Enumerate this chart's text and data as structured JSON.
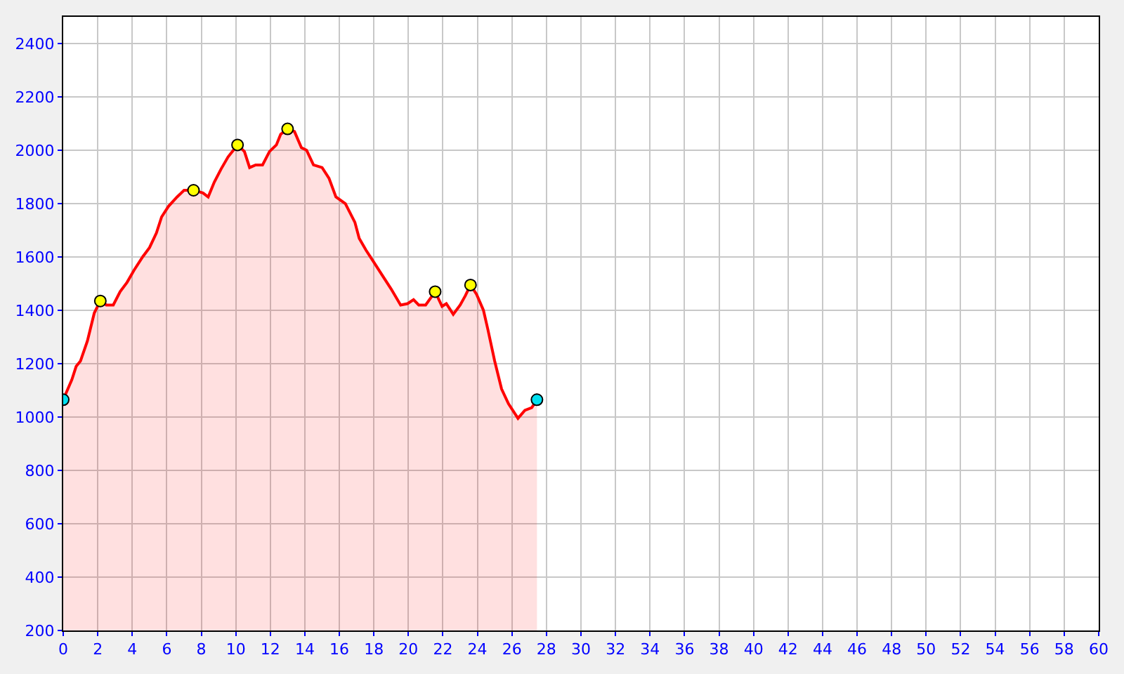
{
  "chart_data": {
    "type": "area",
    "xlim": [
      0,
      60
    ],
    "xticks": [
      0,
      2,
      4,
      6,
      8,
      10,
      12,
      14,
      16,
      18,
      20,
      22,
      24,
      26,
      28,
      30,
      32,
      34,
      36,
      38,
      40,
      42,
      44,
      46,
      48,
      50,
      52,
      54,
      56,
      58,
      60
    ],
    "ylim": [
      200,
      2500
    ],
    "yticks": [
      200,
      400,
      600,
      800,
      1000,
      1200,
      1400,
      1600,
      1800,
      2000,
      2200,
      2400
    ],
    "grid": true,
    "series": [
      {
        "color": "#ff0000",
        "x": [
          0,
          0.5,
          0.75,
          1.0,
          1.4,
          1.8,
          2.15,
          2.5,
          2.9,
          3.3,
          3.7,
          4.1,
          4.6,
          5.0,
          5.4,
          5.7,
          6.1,
          6.6,
          7.0,
          7.55,
          8.1,
          8.4,
          8.75,
          9.15,
          9.55,
          10.1,
          10.5,
          10.8,
          11.15,
          11.55,
          11.95,
          12.35,
          12.6,
          13.0,
          13.4,
          13.8,
          14.1,
          14.5,
          15.0,
          15.4,
          15.8,
          16.35,
          16.9,
          17.15,
          17.55,
          17.95,
          18.5,
          19.0,
          19.55,
          19.95,
          20.3,
          20.6,
          21.0,
          21.55,
          21.95,
          22.2,
          22.6,
          23.0,
          23.3,
          23.6,
          23.95,
          24.35,
          24.6,
          25.0,
          25.4,
          25.8,
          26.35,
          26.75,
          27.15,
          27.45
        ],
        "values": [
          1065,
          1140,
          1190,
          1210,
          1285,
          1390,
          1435,
          1420,
          1420,
          1470,
          1505,
          1550,
          1600,
          1635,
          1690,
          1750,
          1790,
          1825,
          1850,
          1850,
          1840,
          1825,
          1880,
          1930,
          1975,
          2020,
          1995,
          1935,
          1945,
          1945,
          1995,
          2020,
          2060,
          2080,
          2070,
          2010,
          2000,
          1945,
          1935,
          1895,
          1825,
          1800,
          1730,
          1670,
          1625,
          1585,
          1530,
          1480,
          1420,
          1425,
          1440,
          1420,
          1420,
          1470,
          1415,
          1425,
          1385,
          1420,
          1455,
          1495,
          1460,
          1400,
          1330,
          1210,
          1105,
          1050,
          995,
          1025,
          1035,
          1065
        ]
      },
      {
        "type": "scatter",
        "marker": "circle",
        "color": "#ffff00",
        "x": [
          2.15,
          7.55,
          10.1,
          13.0,
          21.55,
          23.6
        ],
        "values": [
          1435,
          1850,
          2020,
          2080,
          1470,
          1495
        ]
      },
      {
        "type": "scatter",
        "marker": "circle",
        "color": "#00e0f0",
        "x": [
          0,
          27.45
        ],
        "values": [
          1065,
          1065
        ]
      }
    ]
  }
}
